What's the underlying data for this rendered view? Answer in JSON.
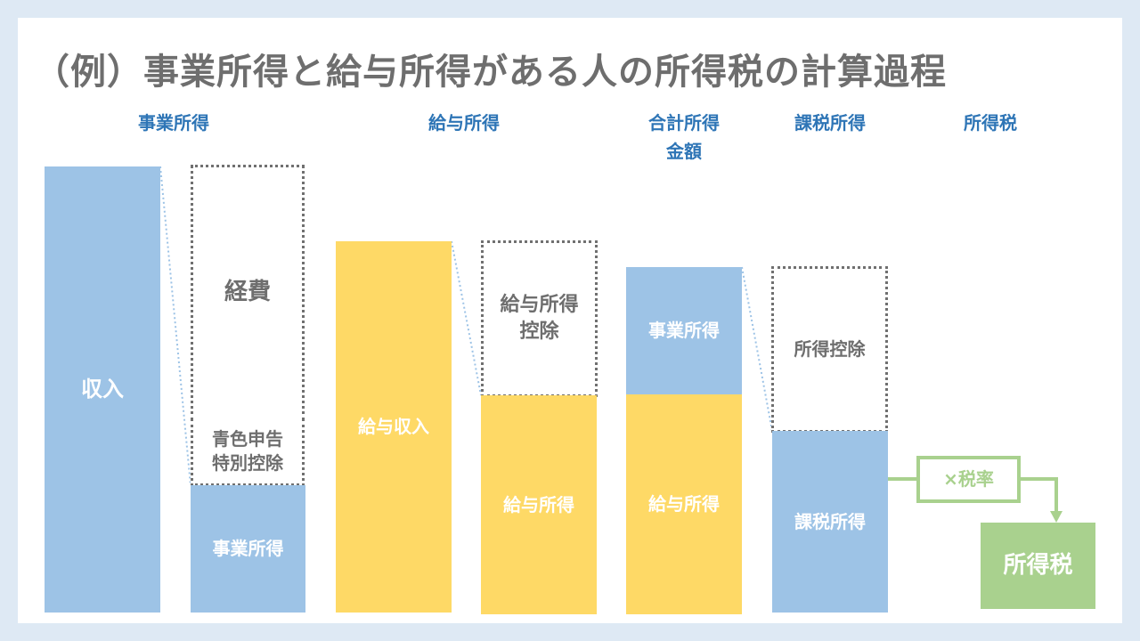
{
  "title": "（例）事業所得と給与所得がある人の所得税の計算過程",
  "headers": {
    "business": "事業所得",
    "salary": "給与所得",
    "total_line1": "合計所得",
    "total_line2": "金額",
    "taxable": "課税所得",
    "tax": "所得税"
  },
  "blocks": {
    "revenue": "収入",
    "expenses": "経費",
    "blue_return_line1": "青色申告",
    "blue_return_line2": "特別控除",
    "business_income": "事業所得",
    "salary_revenue": "給与収入",
    "salary_deduction_line1": "給与所得",
    "salary_deduction_line2": "控除",
    "salary_income": "給与所得",
    "total_business": "事業所得",
    "total_salary": "給与所得",
    "income_deduction": "所得控除",
    "taxable_income": "課税所得",
    "tax_rate": "×税率",
    "income_tax": "所得税"
  },
  "colors": {
    "blue": "#9dc3e6",
    "yellow": "#fed966",
    "green": "#a9d18e",
    "header": "#2e75b6",
    "title": "#6e6e6e"
  }
}
